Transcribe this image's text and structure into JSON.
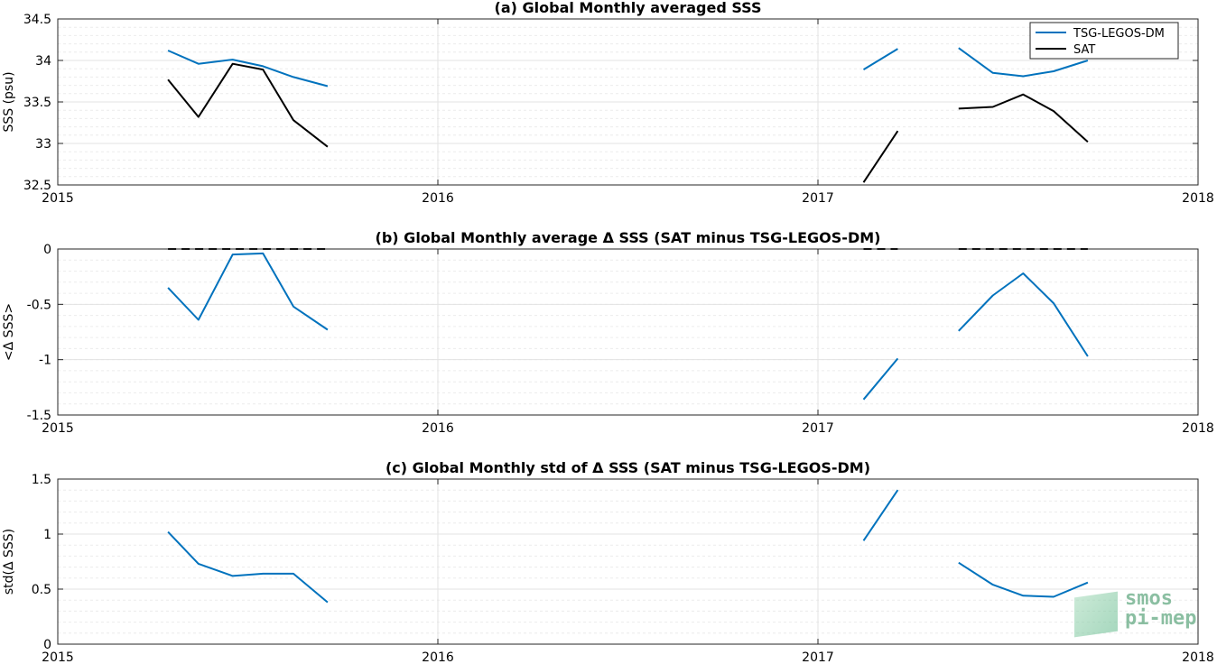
{
  "colors": {
    "tsg": "#0072BD",
    "sat": "#000000",
    "grid_major": "#e3e3e3",
    "grid_minor": "#ececec",
    "watermark": "#2e8b57"
  },
  "watermark": {
    "line1": "smos",
    "line2": "pi-mep"
  },
  "chart_data": [
    {
      "type": "line",
      "title": "(a) Global Monthly averaged SSS",
      "xlabel": "",
      "ylabel": "SSS (psu)",
      "xlim": [
        2015,
        2018
      ],
      "ylim": [
        32.5,
        34.5
      ],
      "xticks": [
        "2015",
        "2016",
        "2017",
        "2018"
      ],
      "yticks": [
        "34.5",
        "34",
        "33.5",
        "33",
        "32.5"
      ],
      "grid": true,
      "legend": "top-right",
      "series": [
        {
          "name": "TSG-LEGOS-DM",
          "color_key": "tsg",
          "segments": [
            [
              [
                2015.29,
                34.12
              ],
              [
                2015.37,
                33.96
              ],
              [
                2015.46,
                34.01
              ],
              [
                2015.54,
                33.93
              ],
              [
                2015.62,
                33.8
              ],
              [
                2015.71,
                33.69
              ]
            ],
            [
              [
                2017.12,
                33.89
              ],
              [
                2017.21,
                34.14
              ]
            ],
            [
              [
                2017.37,
                34.15
              ],
              [
                2017.46,
                33.85
              ],
              [
                2017.54,
                33.81
              ],
              [
                2017.62,
                33.87
              ],
              [
                2017.71,
                34.0
              ]
            ]
          ]
        },
        {
          "name": "SAT",
          "color_key": "sat",
          "segments": [
            [
              [
                2015.29,
                33.77
              ],
              [
                2015.37,
                33.32
              ],
              [
                2015.46,
                33.96
              ],
              [
                2015.54,
                33.89
              ],
              [
                2015.62,
                33.28
              ],
              [
                2015.71,
                32.96
              ]
            ],
            [
              [
                2017.12,
                32.53
              ],
              [
                2017.21,
                33.15
              ]
            ],
            [
              [
                2017.37,
                33.42
              ],
              [
                2017.46,
                33.44
              ],
              [
                2017.54,
                33.59
              ],
              [
                2017.62,
                33.39
              ],
              [
                2017.71,
                33.02
              ]
            ]
          ]
        }
      ]
    },
    {
      "type": "line",
      "title": "(b) Global Monthly average Δ SSS (SAT minus TSG-LEGOS-DM)",
      "xlabel": "",
      "ylabel": "<Δ SSS>",
      "xlim": [
        2015,
        2018
      ],
      "ylim": [
        -1.5,
        0
      ],
      "xticks": [
        "2015",
        "2016",
        "2017",
        "2018"
      ],
      "yticks": [
        "0",
        "-0.5",
        "-1",
        "-1.5"
      ],
      "grid": true,
      "series": [
        {
          "color_key": "tsg",
          "segments": [
            [
              [
                2015.29,
                -0.35
              ],
              [
                2015.37,
                -0.64
              ],
              [
                2015.46,
                -0.05
              ],
              [
                2015.54,
                -0.04
              ],
              [
                2015.62,
                -0.52
              ],
              [
                2015.71,
                -0.73
              ]
            ],
            [
              [
                2017.12,
                -1.36
              ],
              [
                2017.21,
                -0.99
              ]
            ],
            [
              [
                2017.37,
                -0.74
              ],
              [
                2017.46,
                -0.42
              ],
              [
                2017.54,
                -0.22
              ],
              [
                2017.62,
                -0.49
              ],
              [
                2017.71,
                -0.97
              ]
            ]
          ]
        },
        {
          "color_key": "sat",
          "dashed": true,
          "segments": [
            [
              [
                2015.29,
                0
              ],
              [
                2015.71,
                0
              ]
            ],
            [
              [
                2017.12,
                0
              ],
              [
                2017.21,
                0
              ]
            ],
            [
              [
                2017.37,
                0
              ],
              [
                2017.71,
                0
              ]
            ]
          ]
        }
      ]
    },
    {
      "type": "line",
      "title": "(c) Global Monthly std of Δ SSS (SAT minus TSG-LEGOS-DM)",
      "xlabel": "",
      "ylabel": "std(Δ SSS)",
      "xlim": [
        2015,
        2018
      ],
      "ylim": [
        0,
        1.5
      ],
      "xticks": [
        "2015",
        "2016",
        "2017",
        "2018"
      ],
      "yticks": [
        "1.5",
        "1",
        "0.5",
        "0"
      ],
      "grid": true,
      "series": [
        {
          "color_key": "tsg",
          "segments": [
            [
              [
                2015.29,
                1.02
              ],
              [
                2015.37,
                0.73
              ],
              [
                2015.46,
                0.62
              ],
              [
                2015.54,
                0.64
              ],
              [
                2015.62,
                0.64
              ],
              [
                2015.71,
                0.38
              ]
            ],
            [
              [
                2017.12,
                0.94
              ],
              [
                2017.21,
                1.4
              ]
            ],
            [
              [
                2017.37,
                0.74
              ],
              [
                2017.46,
                0.54
              ],
              [
                2017.54,
                0.44
              ],
              [
                2017.62,
                0.43
              ],
              [
                2017.71,
                0.56
              ]
            ]
          ]
        }
      ]
    }
  ]
}
